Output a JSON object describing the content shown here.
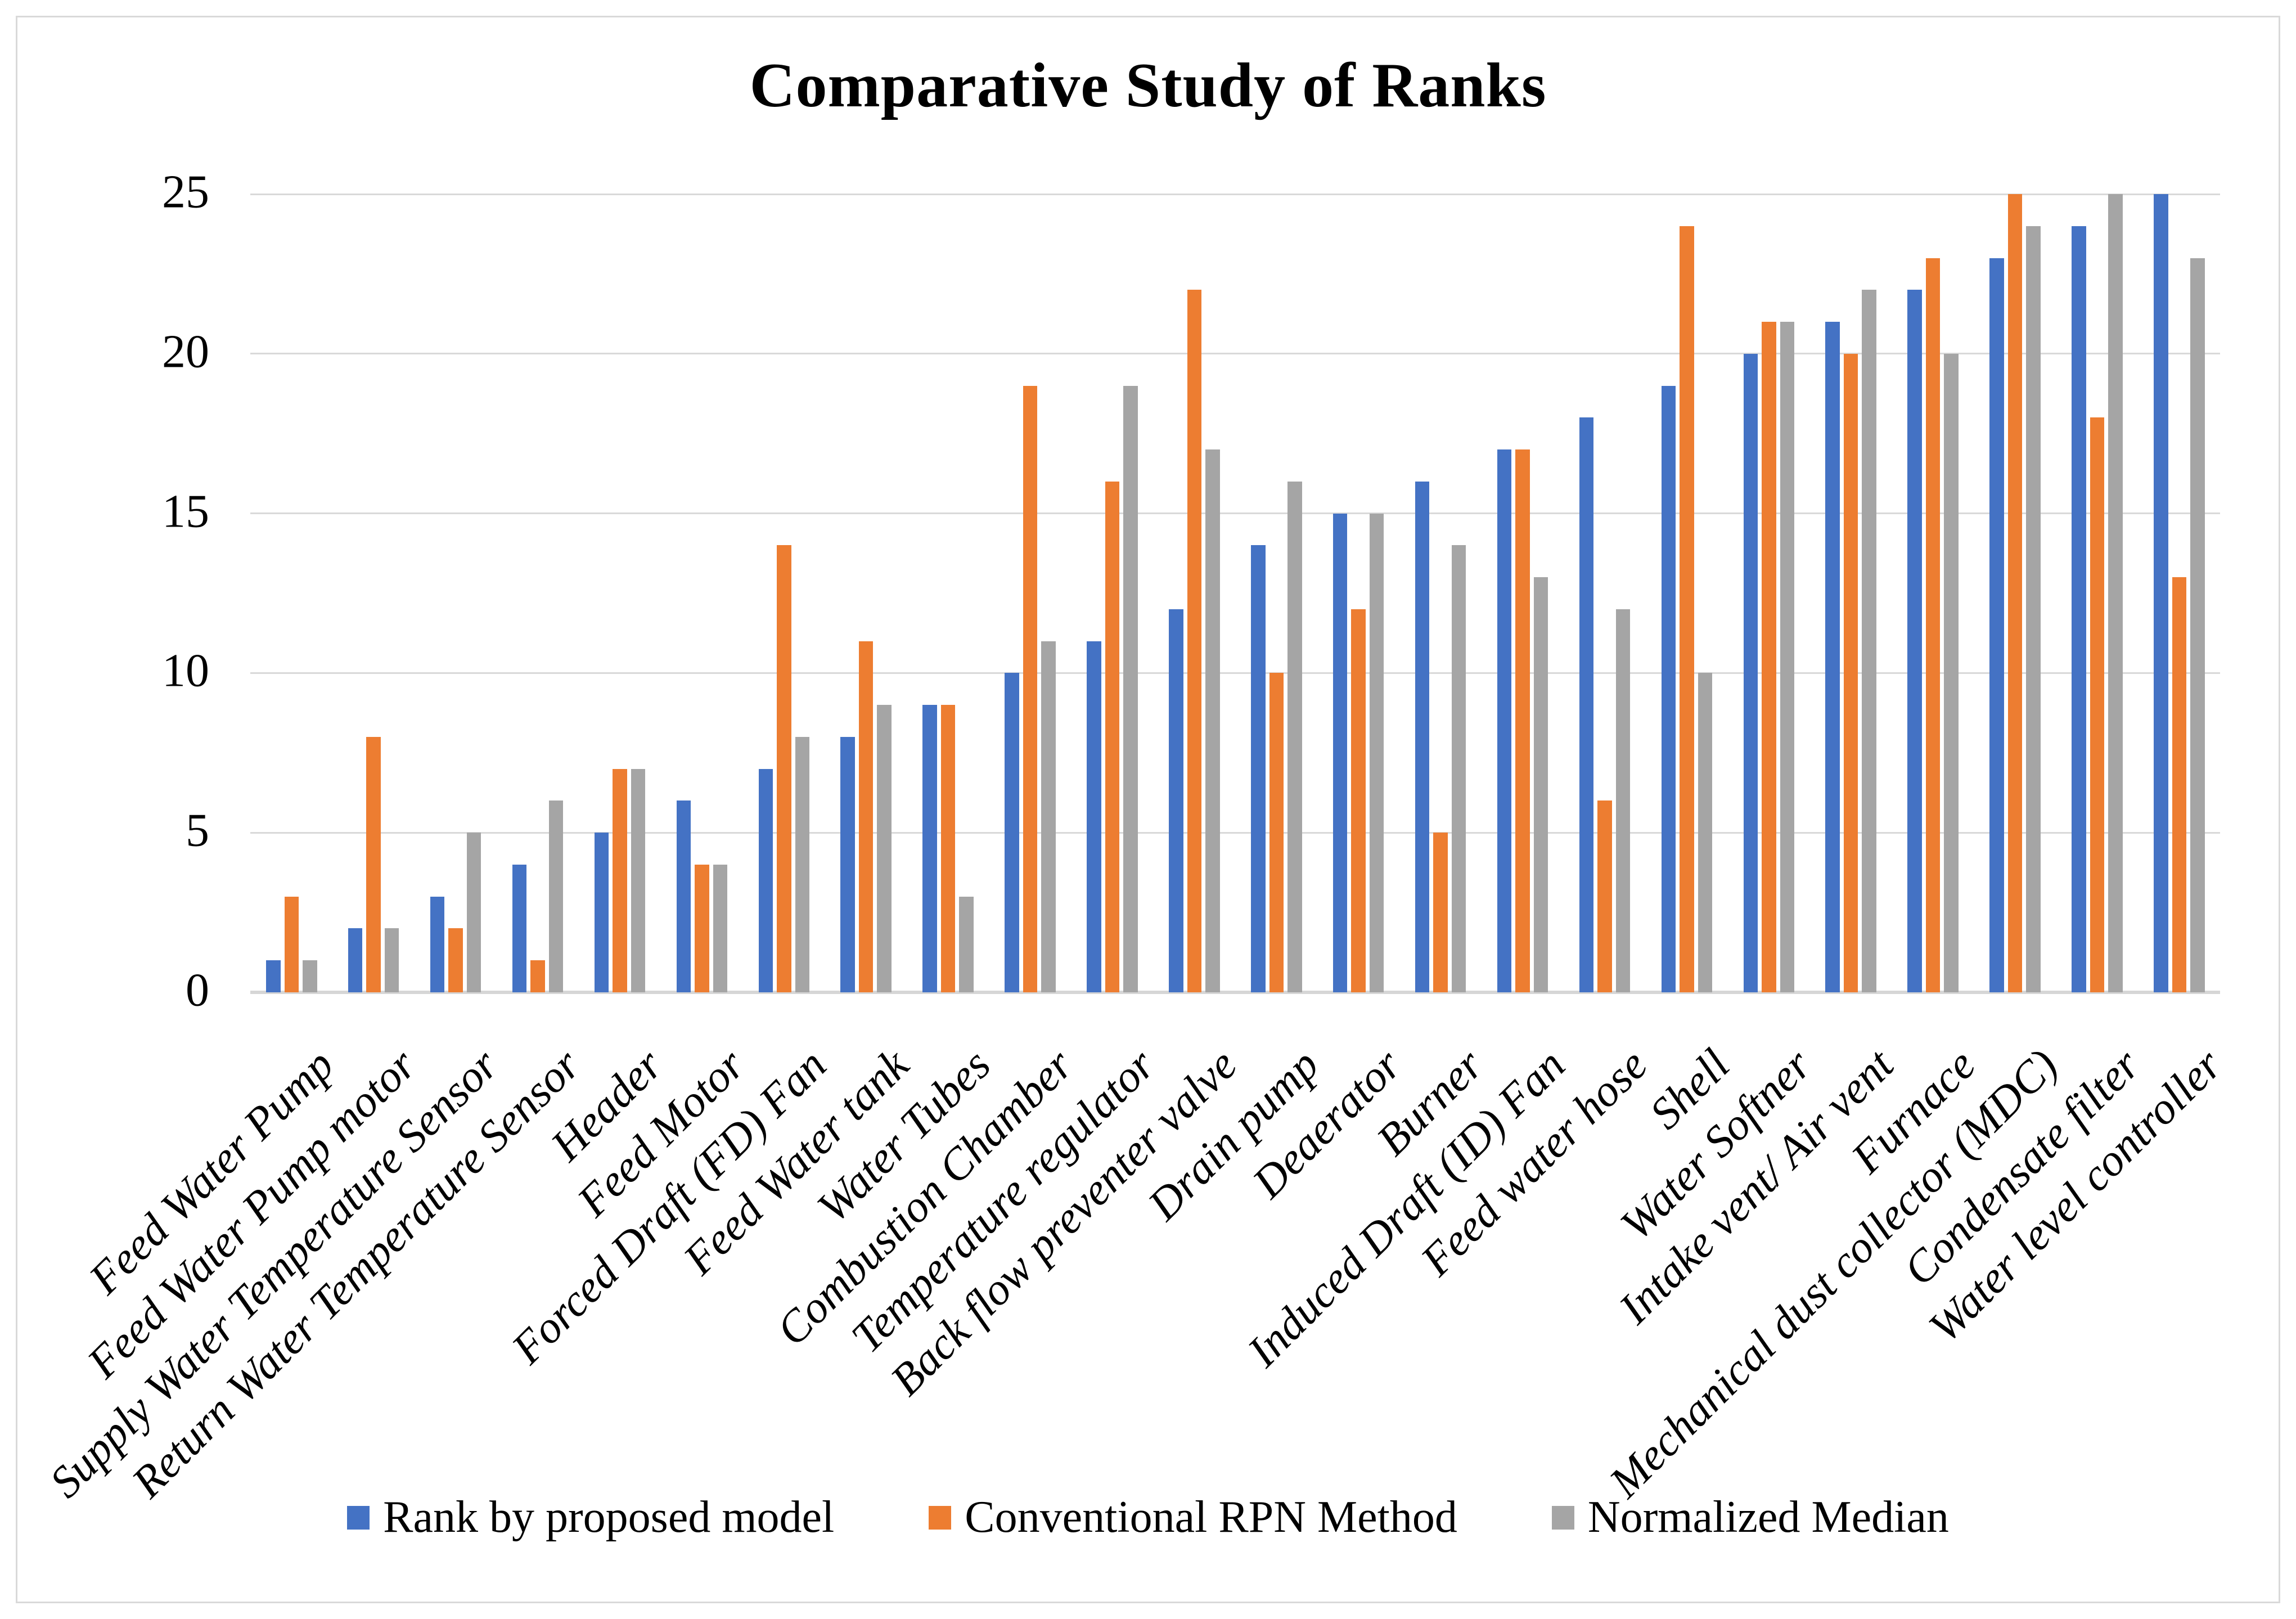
{
  "title": "Comparative Study of Ranks",
  "chart_data": {
    "type": "bar",
    "title": "Comparative Study of Ranks",
    "categories": [
      "Feed Water Pump",
      "Feed Water Pump motor",
      "Supply Water Temperature Sensor",
      "Return Water Temperature Sensor",
      "Header",
      "Feed Motor",
      "Forced Draft (FD) Fan",
      "Feed Water tank",
      "Water Tubes",
      "Combustion Chamber",
      "Temperature regulator",
      "Back flow preventer valve",
      "Drain pump",
      "Deaerator",
      "Burner",
      "Induced Draft (ID) Fan",
      "Feed water hose",
      "Shell",
      "Water Softner",
      "Intake vent/ Air vent",
      "Furnace",
      "Mechanical dust collector (MDC)",
      "Condensate filter",
      "Water level controller"
    ],
    "series": [
      {
        "name": "Rank by proposed model",
        "color": "#4472C4",
        "values": [
          1,
          2,
          3,
          4,
          5,
          6,
          7,
          8,
          9,
          10,
          11,
          12,
          14,
          15,
          16,
          17,
          18,
          19,
          20,
          21,
          22,
          23,
          24,
          25
        ]
      },
      {
        "name": "Conventional RPN Method",
        "color": "#ED7D31",
        "values": [
          3,
          8,
          2,
          1,
          7,
          4,
          14,
          11,
          9,
          19,
          16,
          22,
          10,
          12,
          5,
          17,
          6,
          24,
          21,
          20,
          23,
          25,
          18,
          13
        ]
      },
      {
        "name": "Normalized Median",
        "color": "#A5A5A5",
        "values": [
          1,
          2,
          5,
          6,
          7,
          4,
          8,
          9,
          3,
          11,
          19,
          17,
          16,
          15,
          14,
          13,
          12,
          10,
          21,
          22,
          20,
          24,
          25,
          23
        ]
      }
    ],
    "xlabel": "",
    "ylabel": "",
    "ylim": [
      0,
      25
    ],
    "yticks": [
      0,
      5,
      10,
      15,
      20,
      25
    ],
    "grid": "horizontal",
    "legend_position": "bottom"
  }
}
